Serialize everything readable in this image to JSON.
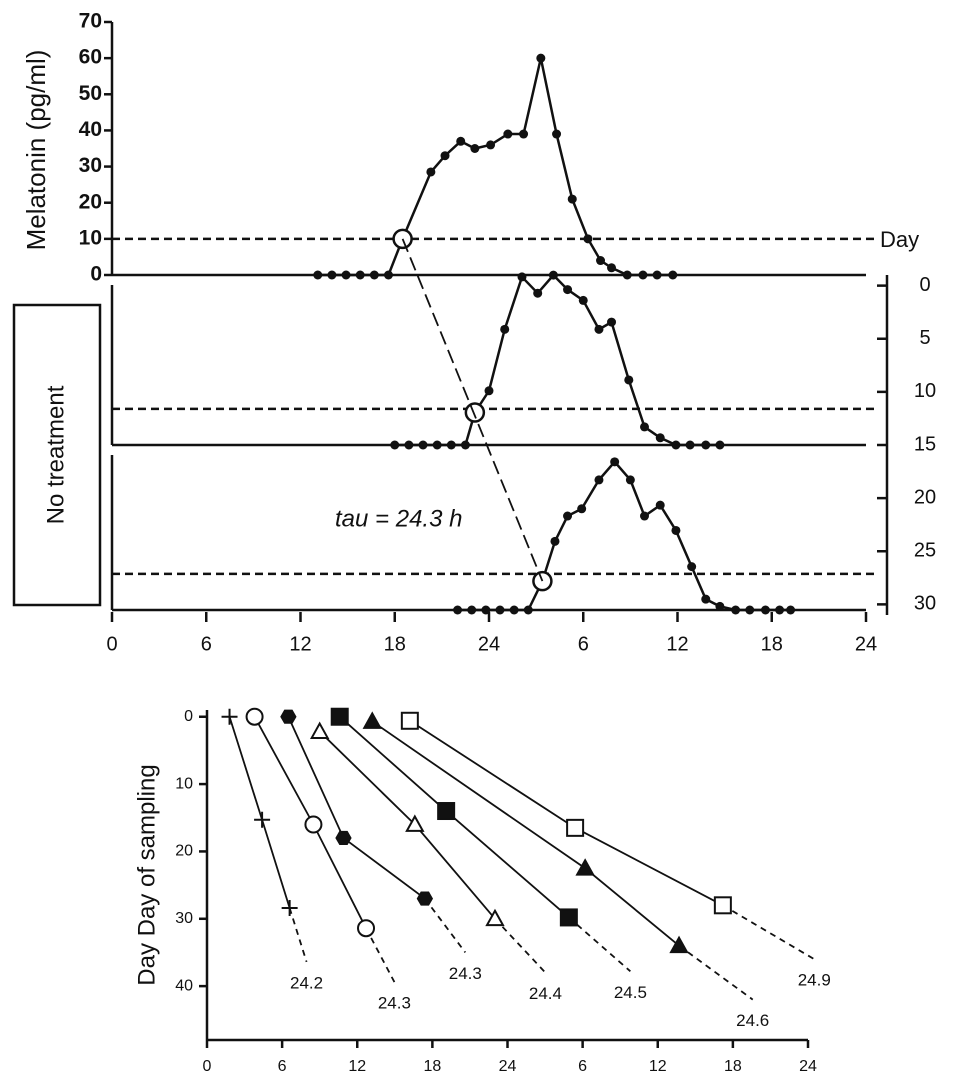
{
  "chart_data": [
    {
      "type": "line",
      "ylabel": "Melatonin (pg/ml)",
      "annotations": [
        "Day",
        "tau = 24.3 h",
        "No treatment"
      ],
      "threshold": 10,
      "xlim": [
        0,
        48
      ],
      "xticks": [
        0,
        6,
        12,
        18,
        24,
        {
          "value": 30,
          "label": "6"
        },
        {
          "value": 36,
          "label": "12"
        },
        {
          "value": 42,
          "label": "18"
        },
        {
          "value": 48,
          "label": "24"
        }
      ],
      "ylim": [
        0,
        70
      ],
      "yticks": [
        0,
        10,
        20,
        30,
        40,
        50,
        60,
        70
      ],
      "y2lim": [
        -1,
        31
      ],
      "y2ticks": [
        0,
        5,
        10,
        15,
        20,
        25,
        30
      ],
      "color": "#111111",
      "series": [
        {
          "x": [
            13.1,
            14,
            14.9,
            15.8,
            16.7,
            17.6,
            18.5,
            20.3,
            21.2,
            22.2,
            23.1,
            24.1,
            25.2,
            26.2,
            27.3,
            28.3,
            29.3,
            30.3,
            31.1,
            31.8,
            32.8,
            33.8,
            34.7,
            35.7
          ],
          "values": [
            0,
            0,
            0,
            0,
            0,
            0,
            10,
            28.5,
            33,
            37,
            35,
            36,
            39,
            39,
            60,
            39,
            21,
            10,
            4,
            2,
            0,
            0,
            0,
            0
          ]
        },
        {
          "x": [
            18,
            18.9,
            19.8,
            20.7,
            21.6,
            22.5,
            23.1,
            24,
            25,
            26.1,
            27.1,
            28.1,
            29,
            30,
            31,
            31.8,
            32.9,
            33.9,
            34.9,
            35.9,
            36.8,
            37.8,
            38.7
          ],
          "values": [
            0,
            0,
            0,
            0,
            0,
            0,
            9,
            15,
            32,
            46.5,
            42,
            47,
            43,
            40,
            32,
            34,
            18,
            5,
            2,
            0,
            0,
            0,
            0
          ]
        },
        {
          "x": [
            22,
            22.9,
            23.8,
            24.7,
            25.6,
            26.5,
            27.4,
            28.2,
            29,
            29.9,
            31,
            32,
            33,
            33.9,
            34.9,
            35.9,
            36.9,
            37.8,
            38.7,
            39.7,
            40.6,
            41.6,
            42.5,
            43.2
          ],
          "values": [
            0,
            0,
            0,
            0,
            0,
            0,
            8,
            19,
            26,
            28,
            36,
            41,
            36,
            26,
            29,
            22,
            12,
            3,
            1,
            0,
            0,
            0,
            0,
            0
          ]
        }
      ]
    },
    {
      "type": "line",
      "ylabel": "Day Day of sampling",
      "xlim": [
        0,
        48
      ],
      "xticks": [
        0,
        6,
        12,
        18,
        24,
        {
          "value": 30,
          "label": "6"
        },
        {
          "value": 36,
          "label": "12"
        },
        {
          "value": 42,
          "label": "18"
        },
        {
          "value": 48,
          "label": "24"
        }
      ],
      "ylim": [
        -1,
        48
      ],
      "yticks": [
        0,
        10,
        20,
        30,
        40
      ],
      "color": "#111111",
      "series": [
        {
          "name": "24.2",
          "marker": "plus",
          "x": [
            1.8,
            4.4,
            6.6
          ],
          "values": [
            0,
            15.3,
            28.4
          ]
        },
        {
          "name": "24.3",
          "marker": "circle-open",
          "x": [
            3.8,
            8.5,
            12.7
          ],
          "values": [
            0,
            16,
            31.4
          ]
        },
        {
          "name": "24.3",
          "marker": "hexagon-filled",
          "x": [
            6.5,
            10.9,
            17.4
          ],
          "values": [
            0,
            18,
            27
          ]
        },
        {
          "name": "24.4",
          "marker": "triangle-open",
          "x": [
            9,
            16.6,
            23
          ],
          "values": [
            2.2,
            16,
            30
          ]
        },
        {
          "name": "24.5",
          "marker": "square-filled",
          "x": [
            10.6,
            19.1,
            28.9
          ],
          "values": [
            0,
            14,
            29.8
          ]
        },
        {
          "name": "24.6",
          "marker": "triangle-filled",
          "x": [
            13.2,
            30.2,
            37.7
          ],
          "values": [
            0.7,
            22.5,
            34
          ]
        },
        {
          "name": "24.9",
          "marker": "square-open",
          "x": [
            16.2,
            29.4,
            41.2
          ],
          "values": [
            0.6,
            16.5,
            28
          ]
        }
      ]
    }
  ]
}
